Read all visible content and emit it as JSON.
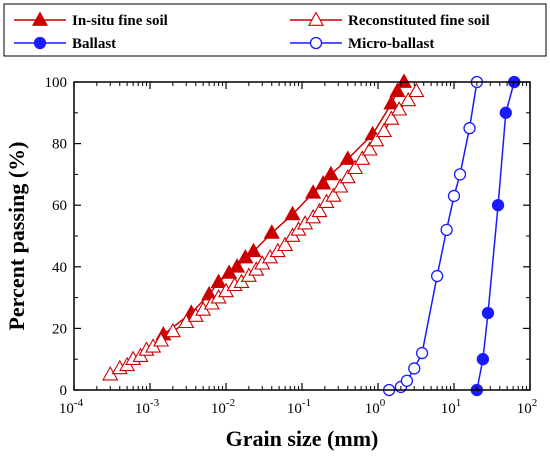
{
  "chart_data": {
    "type": "line",
    "xscale": "log",
    "xlim": [
      0.0001,
      100
    ],
    "ylim": [
      0,
      100
    ],
    "xlabel": "Grain size (mm)",
    "ylabel": "Percent passing (%)",
    "grid": false,
    "legend_position": "top",
    "x_ticks": [
      {
        "value": 0.0001,
        "base": "10",
        "exp": "-4"
      },
      {
        "value": 0.001,
        "base": "10",
        "exp": "-3"
      },
      {
        "value": 0.01,
        "base": "10",
        "exp": "-2"
      },
      {
        "value": 0.1,
        "base": "10",
        "exp": "-1"
      },
      {
        "value": 1,
        "base": "10",
        "exp": "0"
      },
      {
        "value": 10,
        "base": "10",
        "exp": "1"
      },
      {
        "value": 100,
        "base": "10",
        "exp": "2"
      }
    ],
    "y_ticks": [
      "0",
      "20",
      "40",
      "60",
      "80",
      "100"
    ],
    "series": [
      {
        "name": "In-situ fine soil",
        "color": "#cc0000",
        "marker": "triangle-filled",
        "x": [
          0.0015,
          0.0035,
          0.006,
          0.008,
          0.011,
          0.014,
          0.018,
          0.023,
          0.04,
          0.075,
          0.14,
          0.19,
          0.24,
          0.4,
          0.85,
          1.5,
          1.8,
          2.2
        ],
        "y": [
          18,
          25,
          31,
          35,
          38,
          40,
          43,
          45,
          51,
          57,
          64,
          67,
          70,
          75,
          83,
          93,
          97,
          100
        ]
      },
      {
        "name": "Reconstituted fine soil",
        "color": "#cc0000",
        "marker": "triangle-open",
        "x": [
          0.0003,
          0.0004,
          0.0005,
          0.0006,
          0.00075,
          0.0009,
          0.0011,
          0.0014,
          0.002,
          0.003,
          0.004,
          0.005,
          0.0065,
          0.008,
          0.01,
          0.013,
          0.016,
          0.02,
          0.025,
          0.03,
          0.038,
          0.048,
          0.06,
          0.075,
          0.09,
          0.11,
          0.14,
          0.17,
          0.21,
          0.26,
          0.32,
          0.4,
          0.5,
          0.62,
          0.78,
          0.95,
          1.2,
          1.5,
          1.9,
          2.5,
          3.2
        ],
        "y": [
          5,
          7,
          8,
          10,
          11,
          13,
          14,
          16,
          19,
          22,
          24,
          26,
          28,
          30,
          32,
          34,
          35,
          37,
          39,
          41,
          43,
          45,
          47,
          50,
          52,
          54,
          56,
          58,
          61,
          63,
          66,
          69,
          72,
          75,
          78,
          81,
          84,
          88,
          91,
          94,
          97
        ]
      },
      {
        "name": "Ballast",
        "color": "#1a1aff",
        "marker": "circle-filled",
        "x": [
          20,
          24,
          28,
          38,
          48,
          62
        ],
        "y": [
          0,
          10,
          25,
          60,
          90,
          100
        ]
      },
      {
        "name": "Micro-ballast",
        "color": "#1a1aff",
        "marker": "circle-open",
        "x": [
          1.4,
          2.0,
          2.4,
          3.0,
          3.8,
          6,
          8,
          10,
          12,
          16,
          20
        ],
        "y": [
          0,
          1,
          3,
          7,
          12,
          37,
          52,
          63,
          70,
          85,
          100
        ]
      }
    ]
  }
}
